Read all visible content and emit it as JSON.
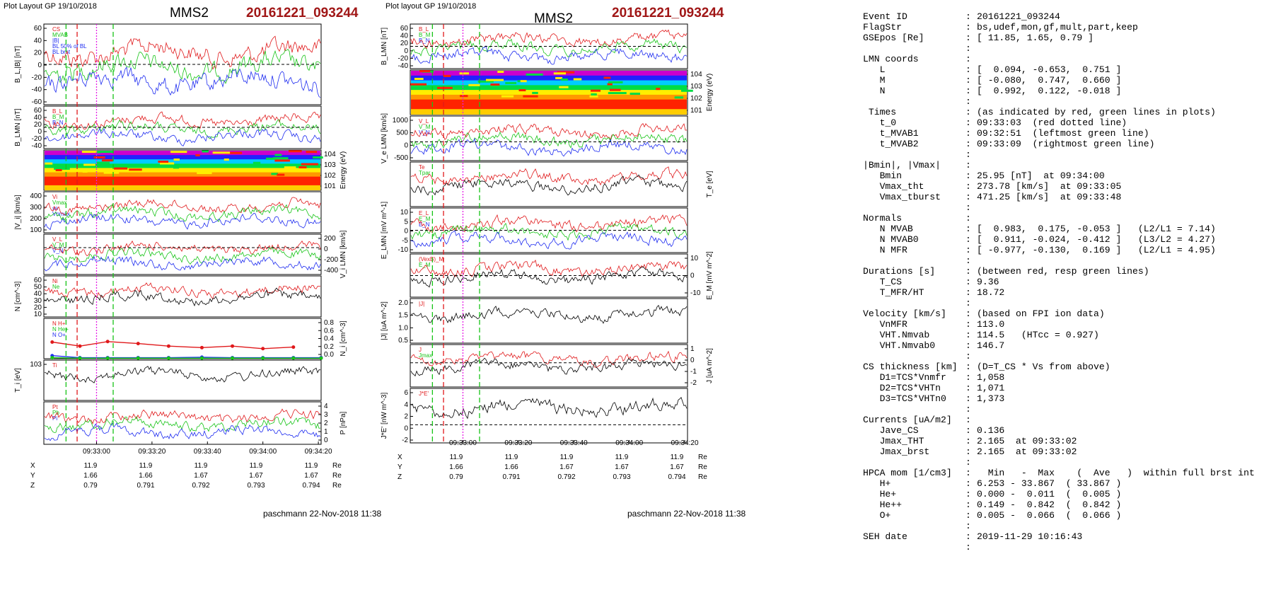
{
  "left_panel": {
    "plot_layout": "Plot Layout GP 19/10/2018",
    "spacecraft": "MMS2",
    "event": "20161221_093244",
    "footer": "paschmann 22-Nov-2018 11:38"
  },
  "middle_panel": {
    "plot_layout": "Plot layout GP 19/10/2018",
    "spacecraft": "MMS2",
    "event": "20161221_093244",
    "footer": "paschmann 22-Nov-2018 11:38"
  },
  "colors": {
    "red": "#e0191b",
    "green": "#17c417",
    "blue": "#1e2cf0",
    "black": "#000000",
    "gray": "#7a7a7a",
    "magenta": "#e61ee6",
    "event_title": "#a01616"
  },
  "chart_data": [
    {
      "type": "line",
      "panel": "left",
      "title": "MMS2 20161221_093244",
      "x_tick_labels": [
        "09:33:00",
        "09:33:20",
        "09:33:40",
        "09:34:00",
        "09:34:20"
      ],
      "position_table": {
        "rows": [
          {
            "label": "X",
            "values": [
              "11.9",
              "11.9",
              "11.9",
              "11.9",
              "11.9"
            ],
            "unit": "Re"
          },
          {
            "label": "Y",
            "values": [
              "1.66",
              "1.66",
              "1.67",
              "1.67",
              "1.67"
            ],
            "unit": "Re"
          },
          {
            "label": "Z",
            "values": [
              "0.79",
              "0.791",
              "0.792",
              "0.793",
              "0.794"
            ],
            "unit": "Re"
          }
        ]
      },
      "markers": [
        "t_MVAB1 (green dashed)",
        "t_0 (red dashed)",
        "CS center (magenta dotted)",
        "t_MVAB2 (green dashed)"
      ],
      "panels": [
        {
          "ylabel": "B_L,|B| [nT]",
          "right_label": "",
          "ylim": [
            -60,
            60
          ],
          "ticks": [
            "60",
            "40",
            "20",
            "0",
            "-20",
            "-40",
            "-60"
          ],
          "right_ticks": [],
          "legend": [
            "CS",
            "MVAB",
            "|B|",
            "BL 50% of BL",
            "BL brst"
          ],
          "series": [
            {
              "name": "|B|",
              "color": "#7a7a7a"
            },
            {
              "name": "B_L brst",
              "color": "#1e2cf0"
            },
            {
              "name": "B_L smooth",
              "color": "#1e2cf0"
            }
          ]
        },
        {
          "ylabel": "B_LMN [nT]",
          "right_label": "",
          "ylim": [
            -60,
            60
          ],
          "ticks": [
            "60",
            "40",
            "20",
            "0",
            "-20",
            "-40"
          ],
          "right_ticks": [],
          "legend": [
            "B_L",
            "B_M",
            "B_N"
          ],
          "series": []
        },
        {
          "ylabel": "",
          "right_label": "Energy (eV)",
          "ylim": [
            1,
            30000
          ],
          "ticks": [],
          "right_ticks": [
            "10^4",
            "10^3",
            "10^2",
            "10^1"
          ],
          "legend": [],
          "series": []
        },
        {
          "ylabel": "|V_i| [km/s]",
          "right_label": "",
          "ylim": [
            50,
            500
          ],
          "ticks": [
            "400",
            "300",
            "200",
            "100"
          ],
          "right_ticks": [],
          "legend": [
            "Vi",
            "Vmax",
            "ss",
            "Vnmax"
          ],
          "series": []
        },
        {
          "ylabel": "",
          "right_label": "V_i LMN [km/s]",
          "ylim": [
            -500,
            250
          ],
          "ticks": [],
          "right_ticks": [
            "200",
            "0",
            "-200",
            "-400"
          ],
          "legend": [
            "V_L",
            "V_M",
            "V_N"
          ],
          "series": []
        },
        {
          "ylabel": "N [cm^-3]",
          "right_label": "",
          "ylim": [
            5,
            65
          ],
          "ticks": [
            "60",
            "50",
            "40",
            "30",
            "20",
            "10"
          ],
          "right_ticks": [],
          "legend": [
            "Ni",
            "Ne"
          ],
          "series": []
        },
        {
          "ylabel": "",
          "right_label": "N_i [cm^-3]",
          "ylim": [
            0,
            0.8
          ],
          "ticks": [],
          "right_ticks": [
            "0.8",
            "0.6",
            "0.4",
            "0.2",
            "0.0"
          ],
          "legend": [
            "N H+",
            "N He+",
            "N O+"
          ],
          "series": [
            {
              "name": "N He+",
              "color": "#e0191b",
              "x_frac": [
                0.03,
                0.13,
                0.23,
                0.34,
                0.45,
                0.57,
                0.68,
                0.79,
                0.9
              ],
              "values": [
                0.33,
                0.25,
                0.34,
                0.3,
                0.25,
                0.22,
                0.25,
                0.2,
                0.23
              ]
            },
            {
              "name": "N O+",
              "color": "#1e2cf0",
              "x_frac": [
                0.03,
                0.13,
                0.23,
                0.34,
                0.45,
                0.57,
                0.68,
                0.79,
                0.9,
                1.0
              ],
              "values": [
                0.06,
                0.02,
                0.02,
                0.02,
                0.02,
                0.03,
                0.02,
                0.02,
                0.02,
                0.02
              ]
            },
            {
              "name": "N H+",
              "color": "#17c417",
              "x_frac": [
                0.03,
                0.13,
                0.23,
                0.34,
                0.45,
                0.57,
                0.68,
                0.79,
                0.9,
                1.0
              ],
              "values": [
                0.02,
                0.01,
                0.01,
                0.01,
                0.01,
                0.01,
                0.01,
                0.01,
                0.01,
                0.01
              ]
            }
          ]
        },
        {
          "ylabel": "T_i [eV]",
          "right_label": "",
          "ylim": [
            200,
            2000
          ],
          "ticks": [
            "10^3"
          ],
          "right_ticks": [],
          "legend": [
            "Ti"
          ],
          "series": []
        },
        {
          "ylabel": "",
          "right_label": "P [nPa]",
          "ylim": [
            0,
            4
          ],
          "ticks": [],
          "right_ticks": [
            "4",
            "3",
            "2",
            "1",
            "0"
          ],
          "legend": [
            "Pt",
            "Pb",
            "Pi"
          ],
          "series": []
        }
      ]
    },
    {
      "type": "line",
      "panel": "middle",
      "title": "MMS2 20161221_093244",
      "x_tick_labels": [
        "09:33:00",
        "09:33:20",
        "09:33:40",
        "09:34:00",
        "09:34:20"
      ],
      "position_table": {
        "rows": [
          {
            "label": "X",
            "values": [
              "11.9",
              "11.9",
              "11.9",
              "11.9",
              "11.9"
            ],
            "unit": "Re"
          },
          {
            "label": "Y",
            "values": [
              "1.66",
              "1.66",
              "1.67",
              "1.67",
              "1.67"
            ],
            "unit": "Re"
          },
          {
            "label": "Z",
            "values": [
              "0.79",
              "0.791",
              "0.792",
              "0.793",
              "0.794"
            ],
            "unit": "Re"
          }
        ]
      },
      "panels": [
        {
          "ylabel": "B_LMN [nT]",
          "right_label": "",
          "ylim": [
            -60,
            60
          ],
          "ticks": [
            "60",
            "40",
            "20",
            "0",
            "-20",
            "-40"
          ],
          "right_ticks": [],
          "legend": [
            "B_L",
            "B_M",
            "B_N"
          ],
          "series": []
        },
        {
          "ylabel": "",
          "right_label": "Energy (eV)",
          "ylim": [
            1,
            30000
          ],
          "ticks": [],
          "right_ticks": [
            "10^4",
            "10^3",
            "10^2",
            "10^1"
          ],
          "legend": [],
          "series": []
        },
        {
          "ylabel": "V_e LMN [km/s]",
          "right_label": "",
          "ylim": [
            -800,
            1100
          ],
          "ticks": [
            "1000",
            "500",
            "0",
            "-500"
          ],
          "right_ticks": [],
          "legend": [
            "V_L",
            "V_M",
            "V_N"
          ],
          "series": []
        },
        {
          "ylabel": "",
          "right_label": "T_e [eV]",
          "ylim": [
            0,
            1
          ],
          "ticks": [],
          "right_ticks": [],
          "legend": [
            "Te",
            "Tpar"
          ],
          "series": []
        },
        {
          "ylabel": "E_LMN [mV m^-1]",
          "right_label": "",
          "ylim": [
            -12,
            12
          ],
          "ticks": [
            "10",
            "5",
            "0",
            "-5",
            "-10"
          ],
          "right_ticks": [],
          "legend": [
            "E_L",
            "E_M",
            "E_N"
          ],
          "series": []
        },
        {
          "ylabel": "",
          "right_label": "E_M [mV m^-2]",
          "ylim": [
            -12,
            12
          ],
          "ticks": [],
          "right_ticks": [
            "10",
            "0",
            "-10"
          ],
          "legend": [
            "(VexB)_M",
            "E_M"
          ],
          "series": []
        },
        {
          "ylabel": "|J| [uA m^-2]",
          "right_label": "",
          "ylim": [
            0,
            2.1
          ],
          "ticks": [
            "2.0",
            "1.5",
            "1.0",
            "0.5"
          ],
          "right_ticks": [],
          "legend": [
            "|J|"
          ],
          "series": []
        },
        {
          "ylabel": "",
          "right_label": "J [uA m^-2]",
          "ylim": [
            -2,
            1.5
          ],
          "ticks": [],
          "right_ticks": [
            "1",
            "0",
            "-1",
            "-2"
          ],
          "legend": [
            "J",
            "Jmax"
          ],
          "series": []
        },
        {
          "ylabel": "J*E' [nW m^-3]",
          "right_label": "",
          "ylim": [
            -3,
            6
          ],
          "ticks": [
            "6",
            "4",
            "2",
            "0",
            "-2"
          ],
          "right_ticks": [],
          "legend": [
            "J*E'"
          ],
          "series": []
        }
      ]
    },
    {
      "type": "table",
      "panel": "right",
      "sections": [
        [
          [
            "Event ID",
            "20161221_093244"
          ],
          [
            "FlagStr",
            "bs,udef,mon,gf,mult,part,keep"
          ],
          [
            "GSEpos [Re]",
            "[ 11.85, 1.65, 0.79 ]"
          ]
        ],
        [
          [
            "LMN coords",
            ""
          ],
          [
            "   L",
            "[  0.094, -0.653,  0.751 ]"
          ],
          [
            "   M",
            "[ -0.080,  0.747,  0.660 ]"
          ],
          [
            "   N",
            "[  0.992,  0.122, -0.018 ]"
          ]
        ],
        [
          [
            " Times",
            "(as indicated by red, green lines in plots)"
          ],
          [
            "   t_0",
            "09:33:03  (red dotted line)"
          ],
          [
            "   t_MVAB1",
            "09:32:51  (leftmost green line)"
          ],
          [
            "   t_MVAB2",
            "09:33:09  (rightmost green line)"
          ]
        ],
        [
          [
            "|Bmin|, |Vmax|",
            ""
          ],
          [
            "   Bmin",
            "25.95 [nT]  at 09:34:00"
          ],
          [
            "   Vmax_tht",
            "273.78 [km/s]  at 09:33:05"
          ],
          [
            "   Vmax_tburst",
            "471.25 [km/s]  at 09:33:48"
          ]
        ],
        [
          [
            "Normals",
            ""
          ],
          [
            "   N MVAB",
            "[  0.983,  0.175, -0.053 ]   (L2/L1 = 7.14)"
          ],
          [
            "   N MVAB0",
            "[  0.911, -0.024, -0.412 ]   (L3/L2 = 4.27)"
          ],
          [
            "   N MFR",
            "[ -0.977, -0.130,  0.169 ]   (L2/L1 = 4.95)"
          ]
        ],
        [
          [
            "Durations [s]",
            "(between red, resp green lines)"
          ],
          [
            "   T_CS",
            "9.36"
          ],
          [
            "   T_MFR/HT",
            "18.72"
          ]
        ],
        [
          [
            "Velocity [km/s]",
            "(based on FPI ion data)"
          ],
          [
            "   VnMFR",
            "113.0"
          ],
          [
            "   VHT.Nmvab",
            "114.5   (HTcc = 0.927)"
          ],
          [
            "   VHT.Nmvab0",
            "146.7"
          ]
        ],
        [
          [
            "CS thickness [km]",
            "(D=T_CS * Vs from above)"
          ],
          [
            "   D1=TCS*Vnmfr",
            "1,058"
          ],
          [
            "   D2=TCS*VHTn",
            "1,071"
          ],
          [
            "   D3=TCS*VHTn0",
            "1,373"
          ]
        ],
        [
          [
            "Currents [uA/m2]",
            ""
          ],
          [
            "   Jave_CS",
            "0.136"
          ],
          [
            "   Jmax_THT",
            "2.165  at 09:33:02"
          ],
          [
            "   Jmax_brst",
            "2.165  at 09:33:02"
          ]
        ],
        [
          [
            "HPCA mom [1/cm3]",
            "  Min   -  Max    (  Ave   )  within full brst int"
          ],
          [
            "   H+",
            "6.253 - 33.867  ( 33.867 )"
          ],
          [
            "   He+",
            "0.000 -  0.011  (  0.005 )"
          ],
          [
            "   He++",
            "0.149 -  0.842  (  0.842 )"
          ],
          [
            "   O+",
            "0.005 -  0.066  (  0.066 )"
          ]
        ],
        [
          [
            "SEH date",
            "2019-11-29 10:16:43"
          ]
        ]
      ]
    }
  ]
}
